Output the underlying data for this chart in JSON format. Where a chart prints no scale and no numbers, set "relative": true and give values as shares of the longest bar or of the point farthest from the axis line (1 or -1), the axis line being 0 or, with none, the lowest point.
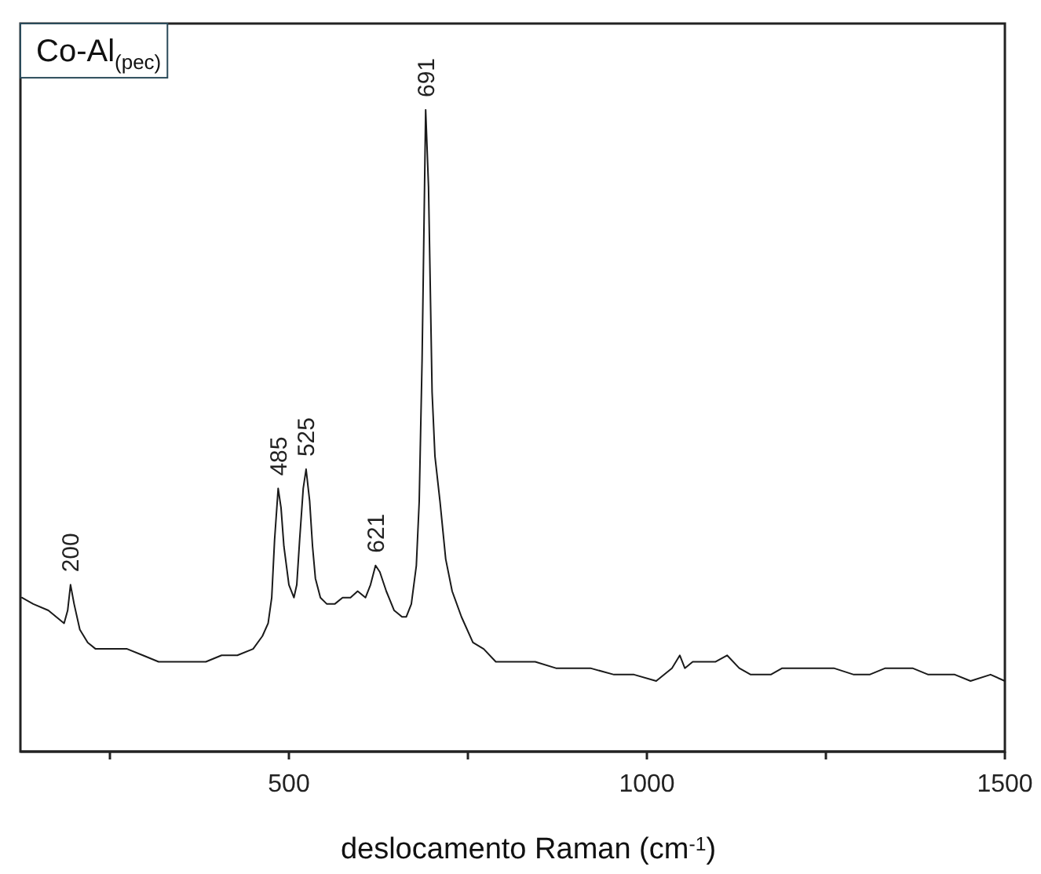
{
  "chart_data": {
    "type": "line",
    "title": "Co-Al$_{(pec)}$",
    "xlabel": "deslocamento Raman (cm$^{-1}$)",
    "relative": true,
    "tick_labels": "x",
    "xlim": [
      125,
      1500
    ],
    "xticks": [
      {
        "value": 250,
        "label": null
      },
      500,
      {
        "value": 750,
        "label": null
      },
      1000,
      {
        "value": 1250,
        "label": null
      },
      1500
    ],
    "series": [
      {
        "color": "#1a1a1a",
        "x": [
          127,
          143,
          164,
          186,
          191,
          195,
          200,
          208,
          219,
          230,
          252,
          274,
          296,
          318,
          340,
          362,
          384,
          406,
          428,
          450,
          463,
          471,
          476,
          480,
          485,
          489,
          493,
          500,
          507,
          511,
          515,
          520,
          524,
          529,
          533,
          537,
          544,
          553,
          564,
          575,
          586,
          596,
          607,
          614,
          621,
          627,
          636,
          647,
          658,
          664,
          671,
          678,
          682,
          686,
          691,
          695,
          700,
          704,
          711,
          719,
          728,
          741,
          757,
          772,
          789,
          805,
          822,
          844,
          873,
          895,
          921,
          954,
          982,
          1013,
          1035,
          1046,
          1053,
          1064,
          1079,
          1096,
          1112,
          1129,
          1145,
          1173,
          1189,
          1211,
          1232,
          1261,
          1289,
          1311,
          1333,
          1353,
          1371,
          1393,
          1408,
          1430,
          1452,
          1480,
          1500
        ],
        "values": [
          0.24,
          0.23,
          0.22,
          0.2,
          0.22,
          0.26,
          0.23,
          0.19,
          0.17,
          0.16,
          0.16,
          0.16,
          0.15,
          0.14,
          0.14,
          0.14,
          0.14,
          0.15,
          0.15,
          0.16,
          0.18,
          0.2,
          0.24,
          0.33,
          0.41,
          0.38,
          0.32,
          0.26,
          0.24,
          0.26,
          0.33,
          0.41,
          0.44,
          0.39,
          0.32,
          0.27,
          0.24,
          0.23,
          0.23,
          0.24,
          0.24,
          0.25,
          0.24,
          0.26,
          0.29,
          0.28,
          0.25,
          0.22,
          0.21,
          0.21,
          0.23,
          0.29,
          0.39,
          0.61,
          1.0,
          0.88,
          0.56,
          0.46,
          0.39,
          0.3,
          0.25,
          0.21,
          0.17,
          0.16,
          0.14,
          0.14,
          0.14,
          0.14,
          0.13,
          0.13,
          0.13,
          0.12,
          0.12,
          0.11,
          0.13,
          0.15,
          0.13,
          0.14,
          0.14,
          0.14,
          0.15,
          0.13,
          0.12,
          0.12,
          0.13,
          0.13,
          0.13,
          0.13,
          0.12,
          0.12,
          0.13,
          0.13,
          0.13,
          0.12,
          0.12,
          0.12,
          0.11,
          0.12,
          0.11
        ]
      }
    ],
    "annotations": [
      {
        "text": "200",
        "x": 195,
        "y": 0.26
      },
      {
        "text": "485",
        "x": 485,
        "y": 0.41
      },
      {
        "text": "525",
        "x": 524,
        "y": 0.44
      },
      {
        "text": "621",
        "x": 621,
        "y": 0.29
      },
      {
        "text": "691",
        "x": 691,
        "y": 1.0
      }
    ]
  }
}
